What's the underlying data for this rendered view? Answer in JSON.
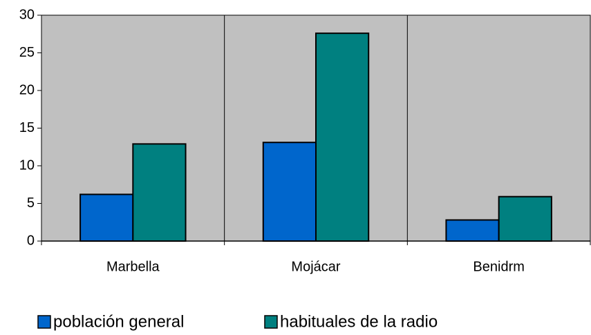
{
  "chart_data": {
    "type": "bar",
    "categories": [
      "Marbella",
      "Mojácar",
      "Benidrm"
    ],
    "series": [
      {
        "name": "población general",
        "color": "#0066cc",
        "values": [
          6.2,
          13.1,
          2.8
        ]
      },
      {
        "name": "habituales de la radio",
        "color": "#008080",
        "values": [
          12.9,
          27.6,
          5.9
        ]
      }
    ],
    "ylim": [
      0,
      30
    ],
    "yticks": [
      0,
      5,
      10,
      15,
      20,
      25,
      30
    ],
    "legend": "bottom"
  }
}
